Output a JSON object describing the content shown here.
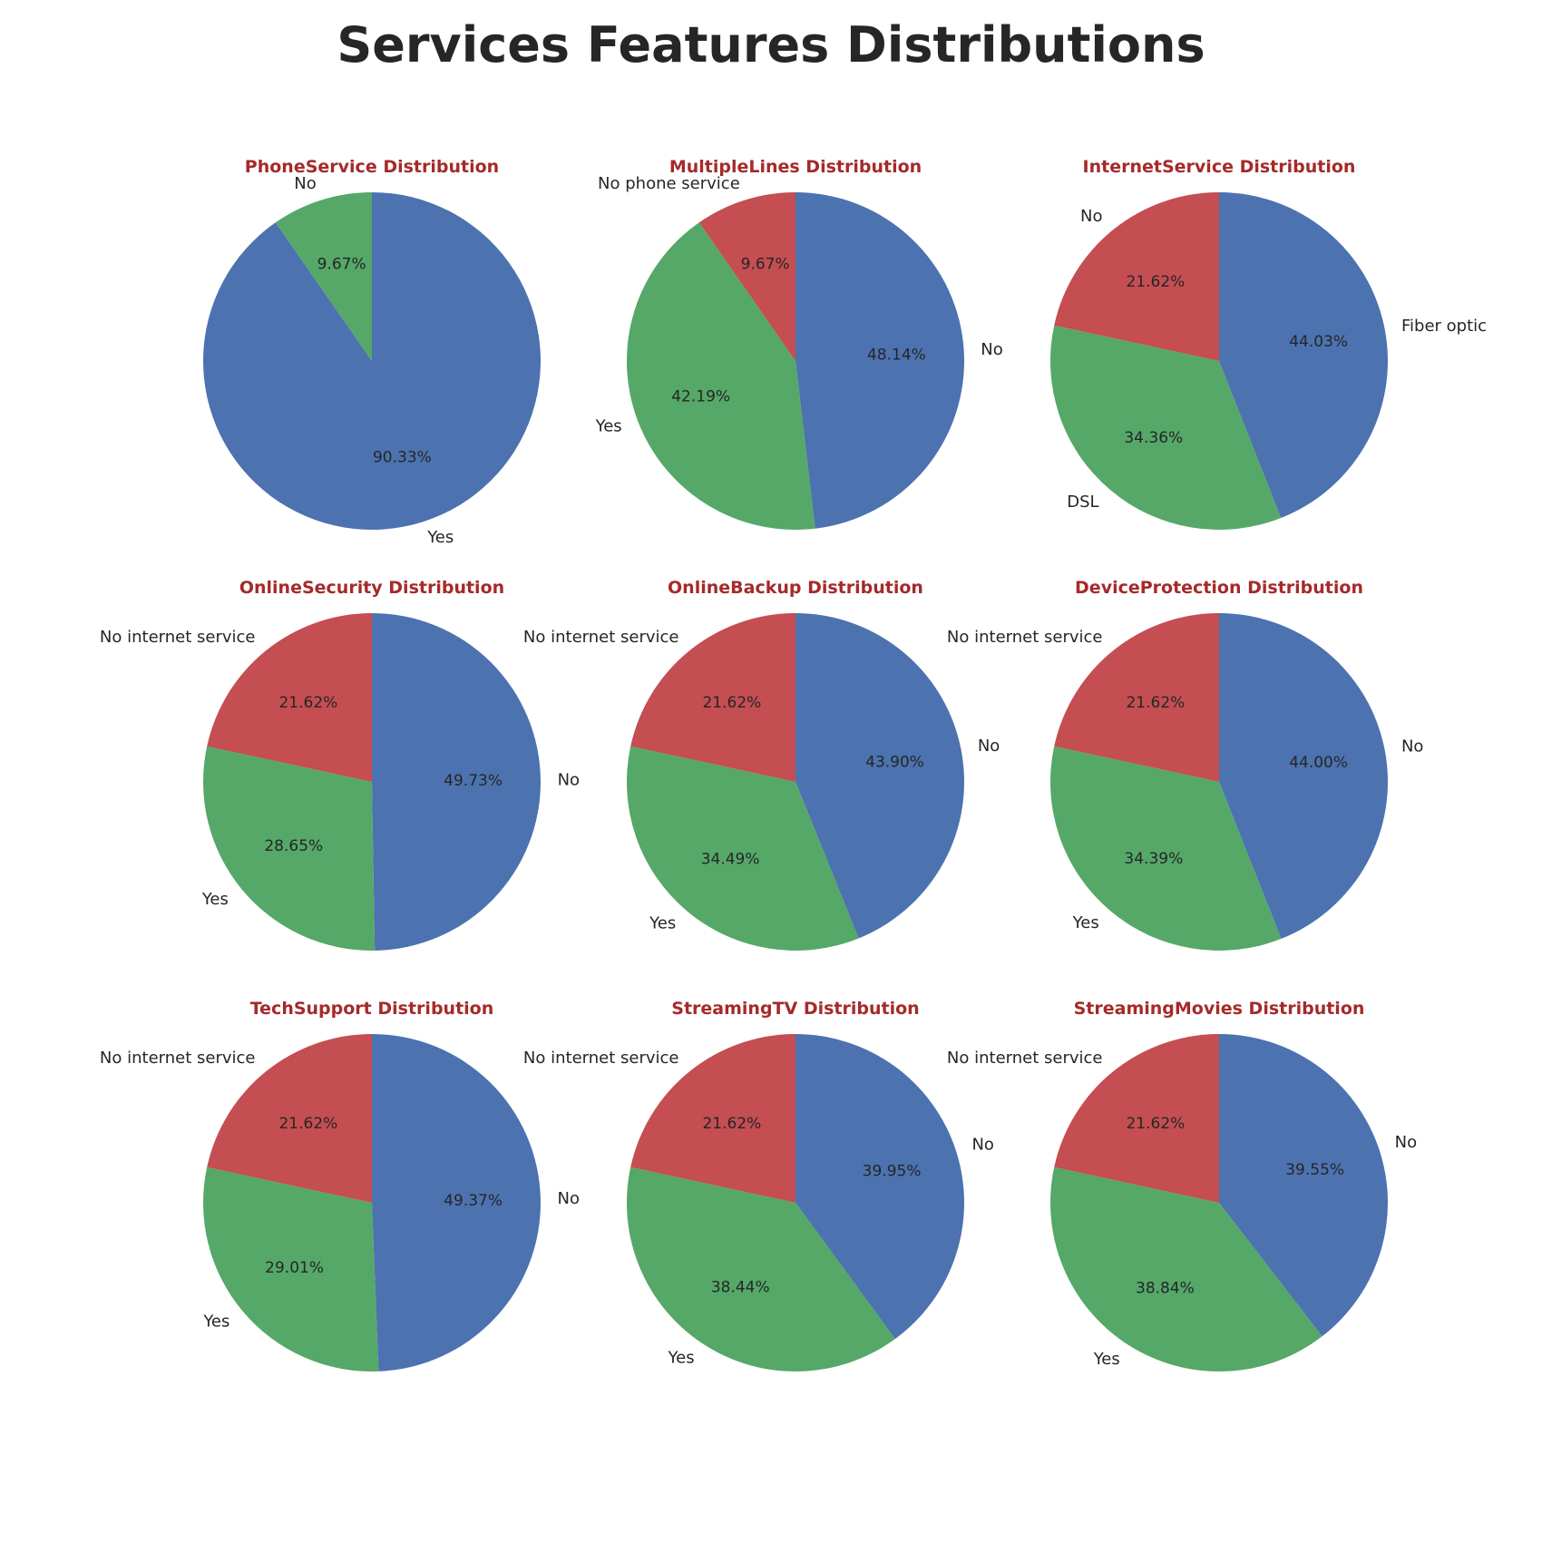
{
  "title": "Services Features Distributions",
  "colors": {
    "title": "#262626",
    "subplot_title": "#a52a2a",
    "slice_first": "#4c72b0",
    "slice_second": "#55a868",
    "slice_third": "#c44e52"
  },
  "chart_data": [
    {
      "type": "pie",
      "title": "PhoneService Distribution",
      "labels": [
        "Yes",
        "No"
      ],
      "values": [
        90.33,
        9.67
      ],
      "value_labels": [
        "90.33%",
        "9.67%"
      ]
    },
    {
      "type": "pie",
      "title": "MultipleLines Distribution",
      "labels": [
        "No",
        "Yes",
        "No phone service"
      ],
      "values": [
        48.14,
        42.19,
        9.67
      ],
      "value_labels": [
        "48.14%",
        "42.19%",
        "9.67%"
      ]
    },
    {
      "type": "pie",
      "title": "InternetService Distribution",
      "labels": [
        "Fiber optic",
        "DSL",
        "No"
      ],
      "values": [
        44.03,
        34.36,
        21.62
      ],
      "value_labels": [
        "44.03%",
        "34.36%",
        "21.62%"
      ]
    },
    {
      "type": "pie",
      "title": "OnlineSecurity Distribution",
      "labels": [
        "No",
        "Yes",
        "No internet service"
      ],
      "values": [
        49.73,
        28.65,
        21.62
      ],
      "value_labels": [
        "49.73%",
        "28.65%",
        "21.62%"
      ]
    },
    {
      "type": "pie",
      "title": "OnlineBackup Distribution",
      "labels": [
        "No",
        "Yes",
        "No internet service"
      ],
      "values": [
        43.9,
        34.49,
        21.62
      ],
      "value_labels": [
        "43.90%",
        "34.49%",
        "21.62%"
      ]
    },
    {
      "type": "pie",
      "title": "DeviceProtection Distribution",
      "labels": [
        "No",
        "Yes",
        "No internet service"
      ],
      "values": [
        44.0,
        34.39,
        21.62
      ],
      "value_labels": [
        "44.00%",
        "34.39%",
        "21.62%"
      ]
    },
    {
      "type": "pie",
      "title": "TechSupport Distribution",
      "labels": [
        "No",
        "Yes",
        "No internet service"
      ],
      "values": [
        49.37,
        29.01,
        21.62
      ],
      "value_labels": [
        "49.37%",
        "29.01%",
        "21.62%"
      ]
    },
    {
      "type": "pie",
      "title": "StreamingTV Distribution",
      "labels": [
        "No",
        "Yes",
        "No internet service"
      ],
      "values": [
        39.95,
        38.44,
        21.62
      ],
      "value_labels": [
        "39.95%",
        "38.44%",
        "21.62%"
      ]
    },
    {
      "type": "pie",
      "title": "StreamingMovies Distribution",
      "labels": [
        "No",
        "Yes",
        "No internet service"
      ],
      "values": [
        39.55,
        38.84,
        21.62
      ],
      "value_labels": [
        "39.55%",
        "38.84%",
        "21.62%"
      ]
    }
  ]
}
